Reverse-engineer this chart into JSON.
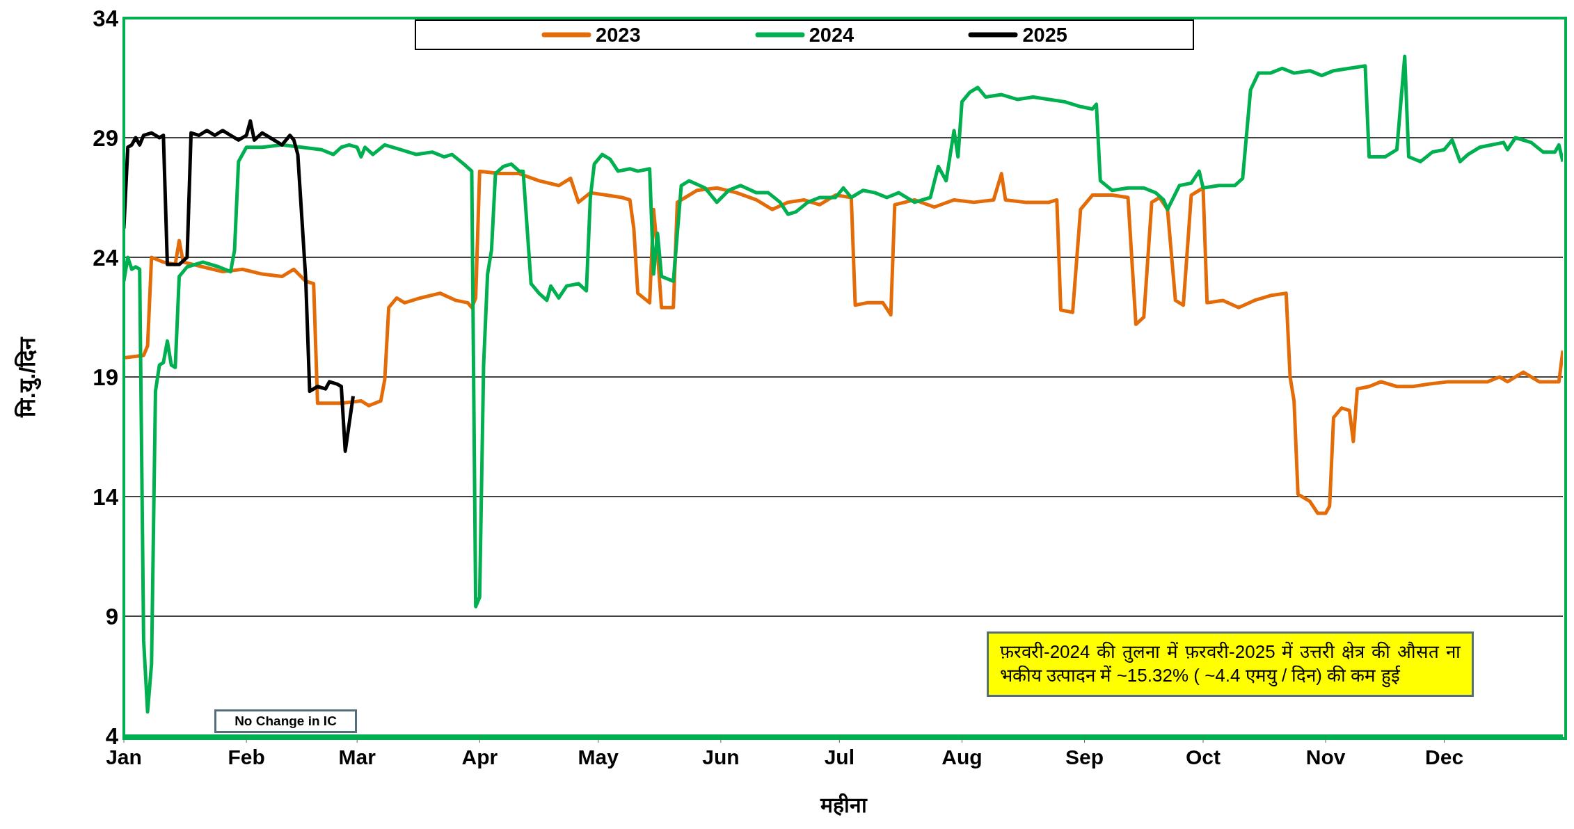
{
  "chart_data": {
    "type": "line",
    "xlabel": "महीना",
    "ylabel": "मि.यु./दिन",
    "xlim": [
      "--01-01",
      "--12-31"
    ],
    "xticks": [
      {
        "value": "--01-01",
        "label": "Jan"
      },
      {
        "value": "--02-01",
        "label": "Feb"
      },
      {
        "value": "--03-01",
        "label": "Mar"
      },
      {
        "value": "--04-01",
        "label": "Apr"
      },
      {
        "value": "--05-01",
        "label": "May"
      },
      {
        "value": "--06-01",
        "label": "Jun"
      },
      {
        "value": "--07-01",
        "label": "Jul"
      },
      {
        "value": "--08-01",
        "label": "Aug"
      },
      {
        "value": "--09-01",
        "label": "Sep"
      },
      {
        "value": "--10-01",
        "label": "Oct"
      },
      {
        "value": "--11-01",
        "label": "Nov"
      },
      {
        "value": "--12-01",
        "label": "Dec"
      }
    ],
    "ylim": [
      4,
      34
    ],
    "yticks": [
      4,
      9,
      14,
      19,
      24,
      29,
      34
    ],
    "grid": "y",
    "legend": "top",
    "line_style": "solid",
    "annotations": [
      "No Change in IC",
      "फ़रवरी-2024 की तुलना में फ़रवरी-2025 में उत्तरी क्षेत्र की औसत ना भकीय उत्पादन में ~15.32% ( ~4.4 एमयु / दिन) की कम हुई"
    ],
    "series": [
      {
        "name": "2023",
        "color": "#e36c09",
        "x": [
          "--01-01",
          "--01-06",
          "--01-07",
          "--01-08",
          "--01-11",
          "--01-14",
          "--01-15",
          "--01-16",
          "--01-21",
          "--01-26",
          "--01-31",
          "--02-05",
          "--02-10",
          "--02-13",
          "--02-16",
          "--02-18",
          "--02-19",
          "--02-25",
          "--03-02",
          "--03-04",
          "--03-07",
          "--03-08",
          "--03-09",
          "--03-11",
          "--03-13",
          "--03-17",
          "--03-22",
          "--03-26",
          "--03-29",
          "--03-30",
          "--03-31",
          "--04-01",
          "--04-06",
          "--04-11",
          "--04-16",
          "--04-21",
          "--04-24",
          "--04-26",
          "--04-29",
          "--05-03",
          "--05-07",
          "--05-09",
          "--05-10",
          "--05-11",
          "--05-14",
          "--05-15",
          "--05-16",
          "--05-17",
          "--05-20",
          "--05-21",
          "--05-23",
          "--05-26",
          "--05-31",
          "--06-05",
          "--06-10",
          "--06-14",
          "--06-18",
          "--06-22",
          "--06-26",
          "--06-30",
          "--07-04",
          "--07-05",
          "--07-08",
          "--07-12",
          "--07-14",
          "--07-15",
          "--07-20",
          "--07-25",
          "--07-30",
          "--08-04",
          "--08-09",
          "--08-11",
          "--08-12",
          "--08-17",
          "--08-23",
          "--08-25",
          "--08-26",
          "--08-29",
          "--08-31",
          "--09-03",
          "--09-08",
          "--09-12",
          "--09-14",
          "--09-16",
          "--09-18",
          "--09-20",
          "--09-22",
          "--09-24",
          "--09-26",
          "--09-28",
          "--10-01",
          "--10-02",
          "--10-06",
          "--10-10",
          "--10-14",
          "--10-18",
          "--10-22",
          "--10-23",
          "--10-24",
          "--10-25",
          "--10-28",
          "--10-30",
          "--11-01",
          "--11-02",
          "--11-03",
          "--11-05",
          "--11-07",
          "--11-08",
          "--11-09",
          "--11-12",
          "--11-15",
          "--11-19",
          "--11-23",
          "--11-27",
          "--12-02",
          "--12-07",
          "--12-12",
          "--12-15",
          "--12-17",
          "--12-21",
          "--12-25",
          "--12-29",
          "--12-30",
          "--12-31"
        ],
        "values": [
          19.8,
          19.9,
          20.3,
          24.0,
          23.8,
          23.7,
          24.7,
          23.8,
          23.6,
          23.4,
          23.5,
          23.3,
          23.2,
          23.5,
          23.0,
          22.9,
          17.9,
          17.9,
          18.0,
          17.8,
          18.0,
          18.9,
          21.9,
          22.3,
          22.1,
          22.3,
          22.5,
          22.2,
          22.1,
          21.9,
          22.3,
          27.6,
          27.5,
          27.5,
          27.2,
          27.0,
          27.3,
          26.3,
          26.7,
          26.6,
          26.5,
          26.4,
          25.2,
          22.5,
          22.1,
          26.0,
          24.2,
          21.9,
          21.9,
          26.3,
          26.5,
          26.8,
          26.9,
          26.7,
          26.4,
          26.0,
          26.3,
          26.4,
          26.2,
          26.6,
          26.5,
          22.0,
          22.1,
          22.1,
          21.6,
          26.2,
          26.4,
          26.1,
          26.4,
          26.3,
          26.4,
          27.5,
          26.4,
          26.3,
          26.3,
          26.4,
          21.8,
          21.7,
          26.0,
          26.6,
          26.6,
          26.5,
          21.2,
          21.5,
          26.3,
          26.5,
          26.0,
          22.2,
          22.0,
          26.6,
          26.9,
          22.1,
          22.2,
          21.9,
          22.2,
          22.4,
          22.5,
          19.0,
          18.0,
          14.1,
          13.8,
          13.3,
          13.3,
          13.6,
          17.3,
          17.7,
          17.6,
          16.3,
          18.5,
          18.6,
          18.8,
          18.6,
          18.6,
          18.7,
          18.8,
          18.8,
          18.8,
          19.0,
          18.8,
          19.2,
          18.8,
          18.8,
          18.8,
          20.1
        ]
      },
      {
        "name": "2024",
        "color": "#00b050",
        "x": [
          "--01-01",
          "--01-02",
          "--01-03",
          "--01-04",
          "--01-05",
          "--01-06",
          "--01-07",
          "--01-08",
          "--01-09",
          "--01-10",
          "--01-11",
          "--01-12",
          "--01-13",
          "--01-14",
          "--01-15",
          "--01-17",
          "--01-21",
          "--01-25",
          "--01-28",
          "--01-29",
          "--01-30",
          "--02-01",
          "--02-05",
          "--02-10",
          "--02-15",
          "--02-20",
          "--02-23",
          "--02-25",
          "--02-27",
          "--03-01",
          "--03-02",
          "--03-03",
          "--03-05",
          "--03-08",
          "--03-12",
          "--03-16",
          "--03-20",
          "--03-23",
          "--03-25",
          "--03-28",
          "--03-30",
          "--03-31",
          "--04-01",
          "--04-02",
          "--04-03",
          "--04-04",
          "--04-05",
          "--04-07",
          "--04-09",
          "--04-11",
          "--04-12",
          "--04-14",
          "--04-16",
          "--04-18",
          "--04-19",
          "--04-21",
          "--04-23",
          "--04-26",
          "--04-28",
          "--04-29",
          "--04-30",
          "--05-02",
          "--05-04",
          "--05-06",
          "--05-09",
          "--05-11",
          "--05-14",
          "--05-15",
          "--05-16",
          "--05-17",
          "--05-20",
          "--05-22",
          "--05-24",
          "--05-28",
          "--05-31",
          "--06-03",
          "--06-06",
          "--06-10",
          "--06-13",
          "--06-16",
          "--06-18",
          "--06-20",
          "--06-23",
          "--06-26",
          "--06-30",
          "--07-02",
          "--07-04",
          "--07-07",
          "--07-10",
          "--07-13",
          "--07-16",
          "--07-20",
          "--07-24",
          "--07-26",
          "--07-28",
          "--07-30",
          "--07-31",
          "--08-01",
          "--08-03",
          "--08-05",
          "--08-07",
          "--08-11",
          "--08-15",
          "--08-19",
          "--08-23",
          "--08-27",
          "--08-31",
          "--09-03",
          "--09-04",
          "--09-05",
          "--09-08",
          "--09-12",
          "--09-16",
          "--09-19",
          "--09-21",
          "--09-22",
          "--09-25",
          "--09-28",
          "--09-30",
          "--10-01",
          "--10-05",
          "--10-09",
          "--10-11",
          "--10-13",
          "--10-15",
          "--10-18",
          "--10-21",
          "--10-24",
          "--10-28",
          "--10-31",
          "--11-03",
          "--11-07",
          "--11-11",
          "--11-12",
          "--11-16",
          "--11-19",
          "--11-21",
          "--11-22",
          "--11-25",
          "--11-28",
          "--12-01",
          "--12-03",
          "--12-05",
          "--12-07",
          "--12-10",
          "--12-13",
          "--12-16",
          "--12-17",
          "--12-19",
          "--12-23",
          "--12-26",
          "--12-29",
          "--12-30",
          "--12-31"
        ],
        "values": [
          23.0,
          24.0,
          23.5,
          23.6,
          23.5,
          8.0,
          5.0,
          7.0,
          18.4,
          19.5,
          19.6,
          20.5,
          19.5,
          19.4,
          23.2,
          23.6,
          23.8,
          23.6,
          23.4,
          24.3,
          28.0,
          28.6,
          28.6,
          28.7,
          28.6,
          28.5,
          28.3,
          28.6,
          28.7,
          28.6,
          28.2,
          28.6,
          28.3,
          28.7,
          28.5,
          28.3,
          28.4,
          28.2,
          28.3,
          27.9,
          27.6,
          9.4,
          9.8,
          19.5,
          23.3,
          24.3,
          27.5,
          27.8,
          27.9,
          27.6,
          27.6,
          22.9,
          22.5,
          22.2,
          22.8,
          22.3,
          22.8,
          22.9,
          22.6,
          26.5,
          27.9,
          28.3,
          28.1,
          27.6,
          27.7,
          27.6,
          27.7,
          23.3,
          25.0,
          23.2,
          23.0,
          27.0,
          27.2,
          26.9,
          26.3,
          26.8,
          27.0,
          26.7,
          26.7,
          26.3,
          25.8,
          25.9,
          26.3,
          26.5,
          26.5,
          26.9,
          26.5,
          26.8,
          26.7,
          26.5,
          26.7,
          26.3,
          26.5,
          27.8,
          27.2,
          29.3,
          28.2,
          30.5,
          30.9,
          31.1,
          30.7,
          30.8,
          30.6,
          30.7,
          30.6,
          30.5,
          30.3,
          30.2,
          30.4,
          27.2,
          26.8,
          26.9,
          26.9,
          26.7,
          26.4,
          26.0,
          27.0,
          27.1,
          27.6,
          26.9,
          27.0,
          27.0,
          27.3,
          31.0,
          31.7,
          31.7,
          31.9,
          31.7,
          31.8,
          31.6,
          31.8,
          31.9,
          32.0,
          28.2,
          28.2,
          28.5,
          32.4,
          28.2,
          28.0,
          28.4,
          28.5,
          28.9,
          28.0,
          28.3,
          28.6,
          28.7,
          28.8,
          28.5,
          29.0,
          28.8,
          28.4,
          28.4,
          28.7,
          28.0
        ]
      },
      {
        "name": "2025",
        "color": "#000000",
        "x": [
          "--01-01",
          "--01-02",
          "--01-03",
          "--01-04",
          "--01-05",
          "--01-06",
          "--01-08",
          "--01-10",
          "--01-11",
          "--01-12",
          "--01-15",
          "--01-17",
          "--01-18",
          "--01-20",
          "--01-22",
          "--01-24",
          "--01-26",
          "--01-28",
          "--01-30",
          "--02-01",
          "--02-02",
          "--02-03",
          "--02-05",
          "--02-07",
          "--02-10",
          "--02-12",
          "--02-13",
          "--02-14",
          "--02-16",
          "--02-17",
          "--02-19",
          "--02-21",
          "--02-22",
          "--02-24",
          "--02-25",
          "--02-26",
          "--02-28"
        ],
        "values": [
          25.2,
          28.6,
          28.7,
          29.0,
          28.7,
          29.1,
          29.2,
          29.0,
          29.1,
          23.7,
          23.7,
          24.0,
          29.2,
          29.1,
          29.3,
          29.1,
          29.3,
          29.1,
          28.9,
          29.1,
          29.7,
          28.9,
          29.2,
          29.0,
          28.7,
          29.1,
          28.9,
          28.3,
          23.1,
          18.4,
          18.6,
          18.5,
          18.8,
          18.7,
          18.6,
          15.9,
          18.2
        ]
      }
    ]
  }
}
